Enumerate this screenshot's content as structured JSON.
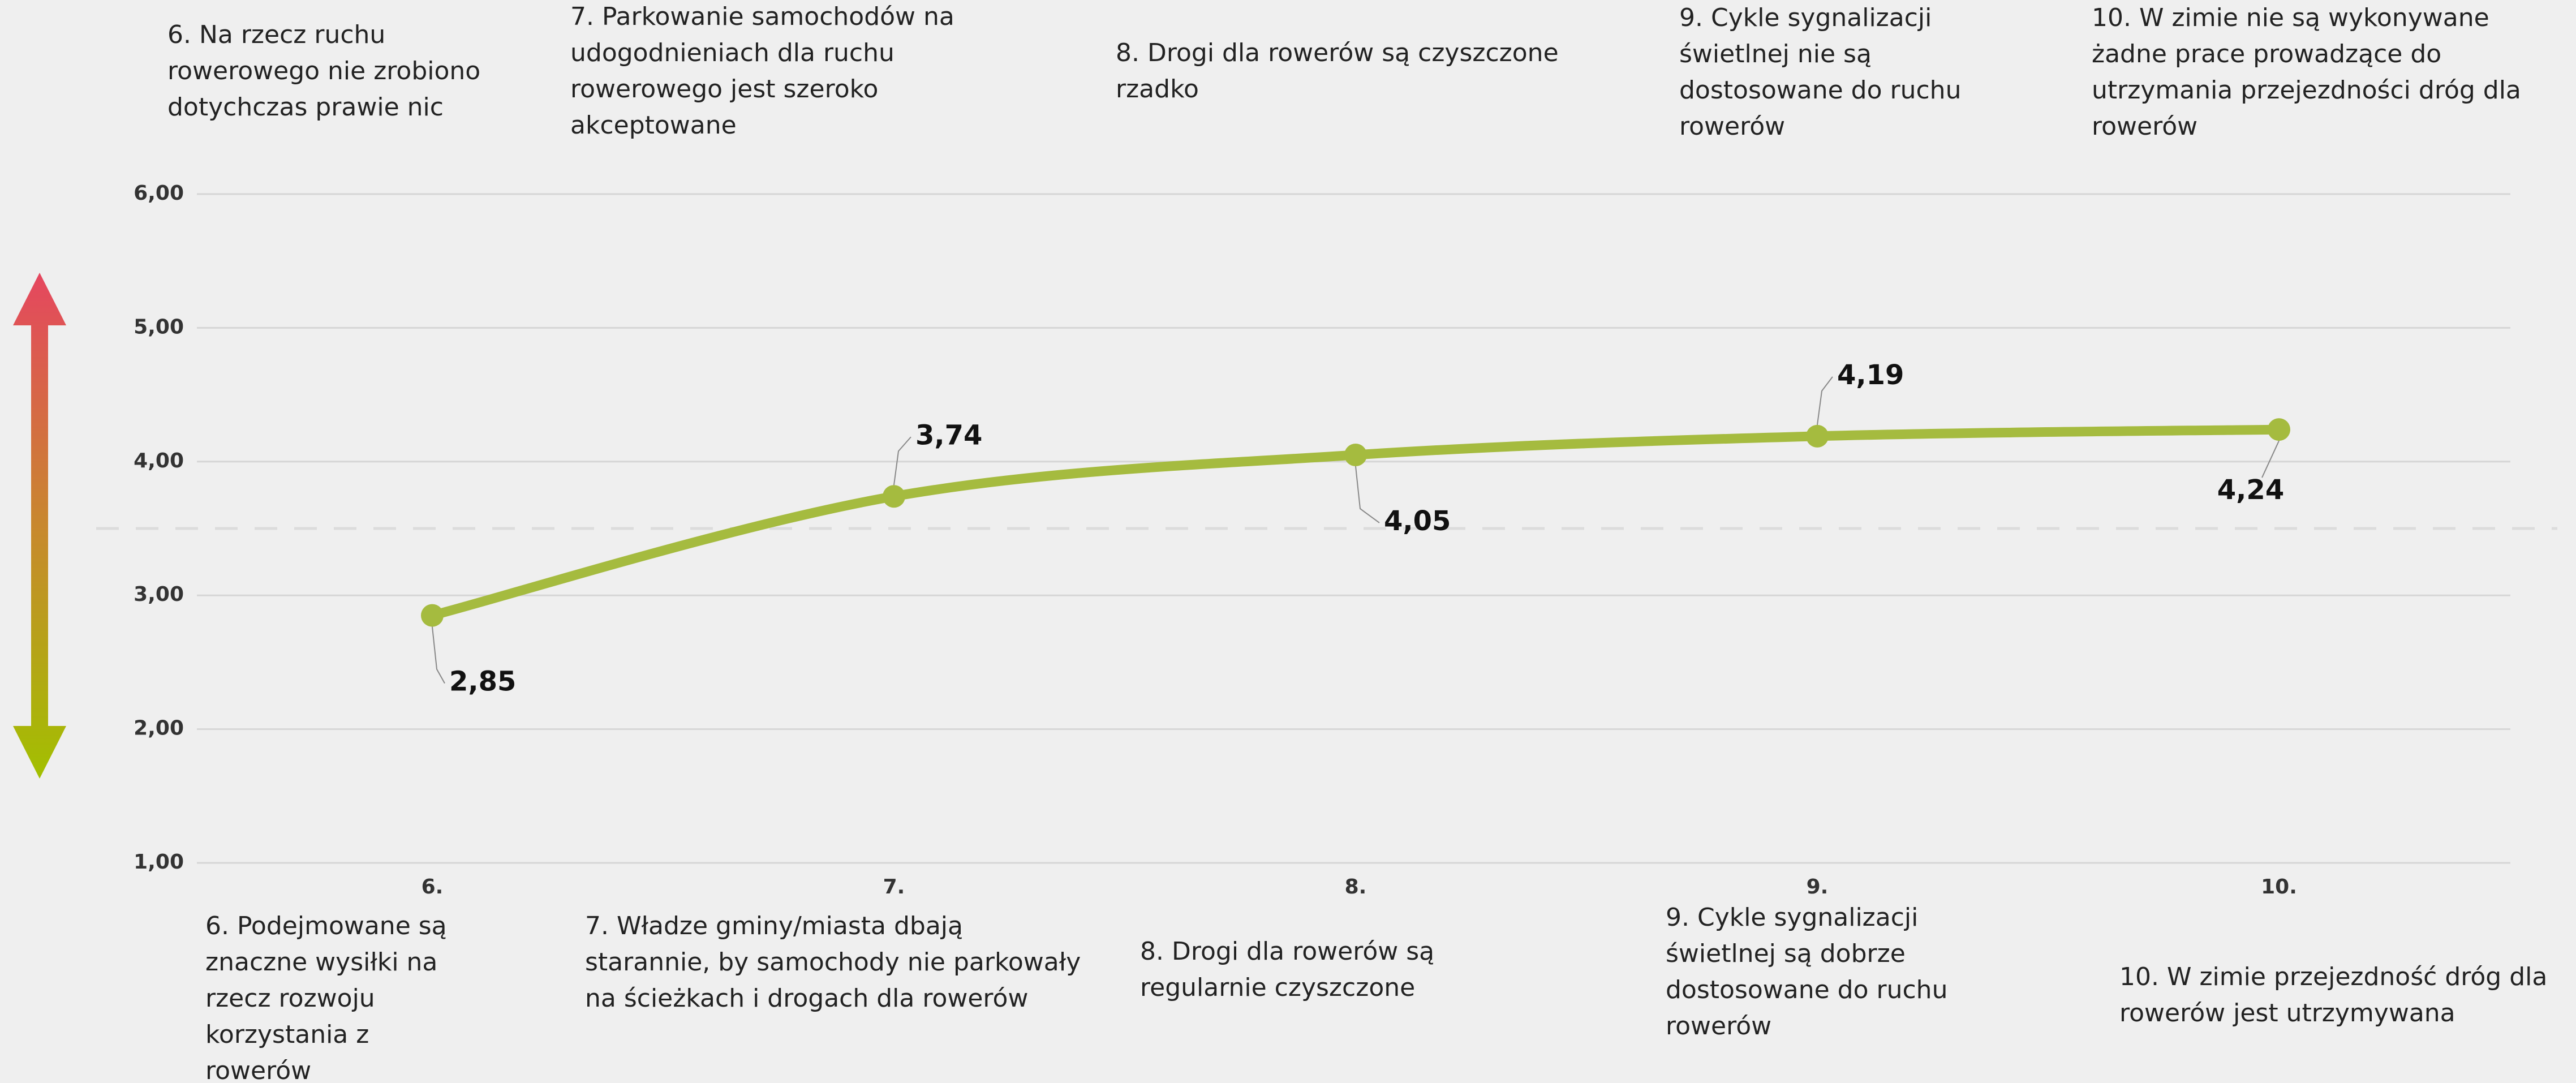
{
  "chart_data": {
    "type": "line",
    "categories": [
      "6.",
      "7.",
      "8.",
      "9.",
      "10."
    ],
    "top_labels": [
      "6. Na rzecz ruchu rowerowego nie zrobiono dotychczas prawie nic",
      "7. Parkowanie samochodów na udogodnieniach dla ruchu rowerowego jest szeroko akceptowane",
      "8. Drogi dla rowerów są czyszczone rzadko",
      "9. Cykle sygnalizacji świetlnej nie są dostosowane do ruchu rowerów",
      "10. W zimie nie są wykonywane żadne prace prowadzące do utrzymania przejezdności dróg dla rowerów"
    ],
    "bottom_labels": [
      "6. Podejmowane są znaczne wysiłki na rzecz rozwoju korzystania z rowerów",
      "7. Władze gminy/miasta dbają starannie, by samochody nie parkowały na ścieżkach i drogach dla rowerów",
      "8. Drogi dla rowerów są regularnie czyszczone",
      "9. Cykle sygnalizacji świetlnej są dobrze dostosowane do ruchu rowerów",
      "10. W zimie przejezdność dróg dla rowerów jest utrzymywana"
    ],
    "series": [
      {
        "color": "#a5bb3f",
        "values": [
          2.85,
          3.74,
          4.05,
          4.19,
          4.24
        ],
        "value_labels": [
          "2,85",
          "3,74",
          "4,05",
          "4,19",
          "4,24"
        ]
      }
    ],
    "ylim": [
      1,
      6
    ],
    "yticks": [
      {
        "value": 1,
        "label": "1,00"
      },
      {
        "value": 2,
        "label": "2,00"
      },
      {
        "value": 3,
        "label": "3,00"
      },
      {
        "value": 4,
        "label": "4,00"
      },
      {
        "value": 5,
        "label": "5,00"
      },
      {
        "value": 6,
        "label": "6,00"
      }
    ],
    "reference_line": 3.5,
    "grid": true
  }
}
